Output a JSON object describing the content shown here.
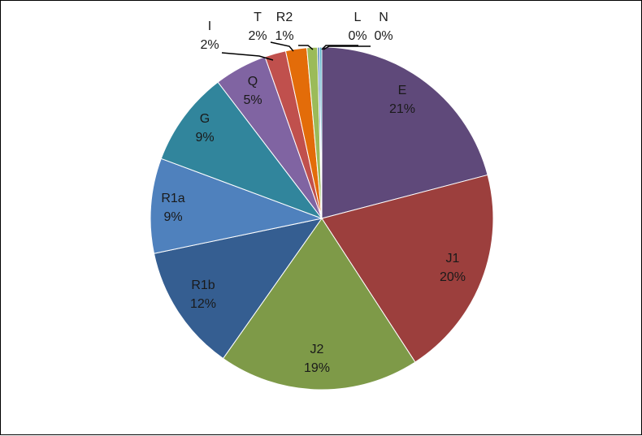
{
  "chart_data": {
    "type": "pie",
    "title": "",
    "slices": [
      {
        "label": "E",
        "value": 21,
        "display": "21%",
        "color": "#5F497A"
      },
      {
        "label": "J1",
        "value": 20,
        "display": "20%",
        "color": "#9C3F3D"
      },
      {
        "label": "J2",
        "value": 19,
        "display": "19%",
        "color": "#7E9A48"
      },
      {
        "label": "R1b",
        "value": 12,
        "display": "12%",
        "color": "#355E91"
      },
      {
        "label": "R1a",
        "value": 9,
        "display": "9%",
        "color": "#4F81BD"
      },
      {
        "label": "G",
        "value": 9,
        "display": "9%",
        "color": "#31859C"
      },
      {
        "label": "Q",
        "value": 5,
        "display": "5%",
        "color": "#8064A2"
      },
      {
        "label": "I",
        "value": 2,
        "display": "2%",
        "color": "#C0504D"
      },
      {
        "label": "T",
        "value": 2,
        "display": "2%",
        "color": "#E36C09"
      },
      {
        "label": "R2",
        "value": 1,
        "display": "1%",
        "color": "#9BBB59"
      },
      {
        "label": "L",
        "value": 0.2,
        "display": "0%",
        "color": "#4F81BD"
      },
      {
        "label": "N",
        "value": 0.2,
        "display": "0%",
        "color": "#4BACC6"
      }
    ],
    "legend": "none",
    "start_angle_deg": 0,
    "direction": "clockwise"
  }
}
